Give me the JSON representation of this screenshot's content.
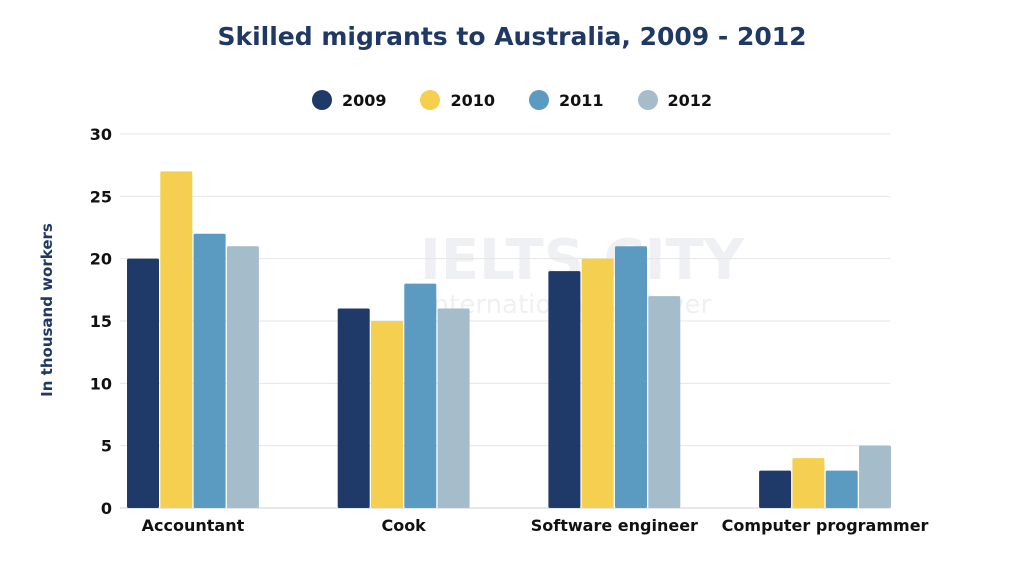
{
  "watermark": {
    "line1": "IELTS CITY",
    "line2": "International & Clever"
  },
  "chart_data": {
    "type": "bar",
    "title": "Skilled migrants to Australia, 2009 - 2012",
    "xlabel": "",
    "ylabel": "In thousand workers",
    "ylim": [
      0,
      30
    ],
    "yticks": [
      0,
      5,
      10,
      15,
      20,
      25,
      30
    ],
    "grid": true,
    "legend_position": "top",
    "categories": [
      "Accountant",
      "Cook",
      "Software engineer",
      "Computer programmer"
    ],
    "series": [
      {
        "name": "2009",
        "color": "#1f3a68",
        "values": [
          20,
          16,
          19,
          3
        ]
      },
      {
        "name": "2010",
        "color": "#f5cf4f",
        "values": [
          27,
          15,
          20,
          4
        ]
      },
      {
        "name": "2011",
        "color": "#5b9bc2",
        "values": [
          22,
          18,
          21,
          3
        ]
      },
      {
        "name": "2012",
        "color": "#a5bccb",
        "values": [
          21,
          16,
          17,
          5
        ]
      }
    ]
  }
}
